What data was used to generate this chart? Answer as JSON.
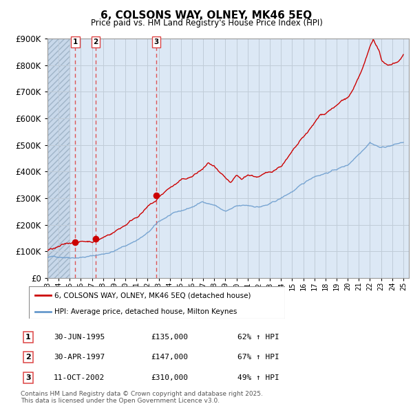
{
  "title": "6, COLSONS WAY, OLNEY, MK46 5EQ",
  "subtitle": "Price paid vs. HM Land Registry's House Price Index (HPI)",
  "legend_entries": [
    "6, COLSONS WAY, OLNEY, MK46 5EQ (detached house)",
    "HPI: Average price, detached house, Milton Keynes"
  ],
  "sales": [
    {
      "label": "1",
      "date": "30-JUN-1995",
      "price": 135000,
      "hpi_pct": "62% ↑ HPI",
      "year": 1995.5
    },
    {
      "label": "2",
      "date": "30-APR-1997",
      "price": 147000,
      "hpi_pct": "67% ↑ HPI",
      "year": 1997.33
    },
    {
      "label": "3",
      "date": "11-OCT-2002",
      "price": 310000,
      "hpi_pct": "49% ↑ HPI",
      "year": 2002.78
    }
  ],
  "footer": "Contains HM Land Registry data © Crown copyright and database right 2025.\nThis data is licensed under the Open Government Licence v3.0.",
  "ylim": [
    0,
    900000
  ],
  "yticks": [
    0,
    100000,
    200000,
    300000,
    400000,
    500000,
    600000,
    700000,
    800000,
    900000
  ],
  "xlim_start": 1993.0,
  "xlim_end": 2025.5,
  "hpi_color": "#6699cc",
  "property_color": "#cc0000",
  "vline_color": "#dd4444",
  "chart_bg": "#dce8f5",
  "hatch_bg": "#c8d8ea",
  "grid_color": "#c0ccd8"
}
